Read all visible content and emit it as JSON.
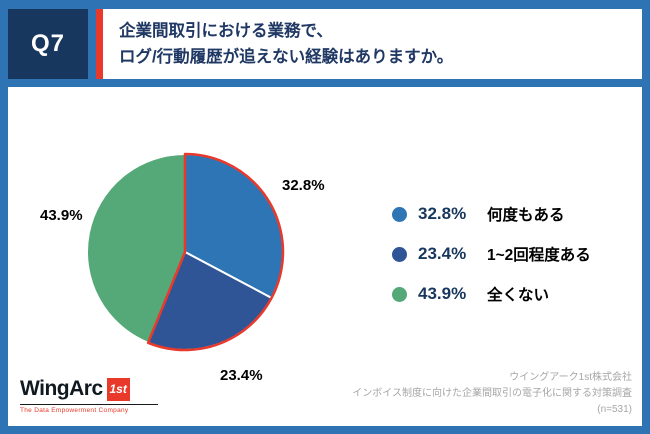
{
  "header": {
    "question_number": "Q7",
    "question_line1": "企業間取引における業務で、",
    "question_line2": "ログ/行動履歴が追えない経験はありますか。"
  },
  "chart_data": {
    "type": "pie",
    "title": "企業間取引における業務で、ログ/行動履歴が追えない経験はありますか。",
    "start_angle_deg": -90,
    "direction": "clockwise",
    "slices": [
      {
        "label": "何度もある",
        "value": 32.8,
        "pct": "32.8%",
        "color": "#2E75B6",
        "highlighted": true
      },
      {
        "label": "1~2回程度ある",
        "value": 23.4,
        "pct": "23.4%",
        "color": "#2F5597",
        "highlighted": true
      },
      {
        "label": "全くない",
        "value": 43.9,
        "pct": "43.9%",
        "color": "#55A877",
        "highlighted": false
      }
    ],
    "highlight_outline_color": "#E8392B",
    "slice_separator_color": "#FFFFFF",
    "legend_position": "right",
    "sample_label": "(n=531)"
  },
  "footer": {
    "logo_text": "WingArc",
    "logo_badge": "1st",
    "logo_tagline": "The Data Empowerment Company",
    "credit_line1": "ウイングアーク1st株式会社",
    "credit_line2": "インボイス制度に向けた企業間取引の電子化に関する対策調査",
    "credit_line3": "(n=531)"
  },
  "colors": {
    "frame_blue": "#2E74B5",
    "question_badge_bg": "#17375E",
    "accent_red": "#E8392B",
    "question_text": "#203864",
    "legend_pct": "#17375E",
    "credits_gray": "#A6A6A6"
  }
}
